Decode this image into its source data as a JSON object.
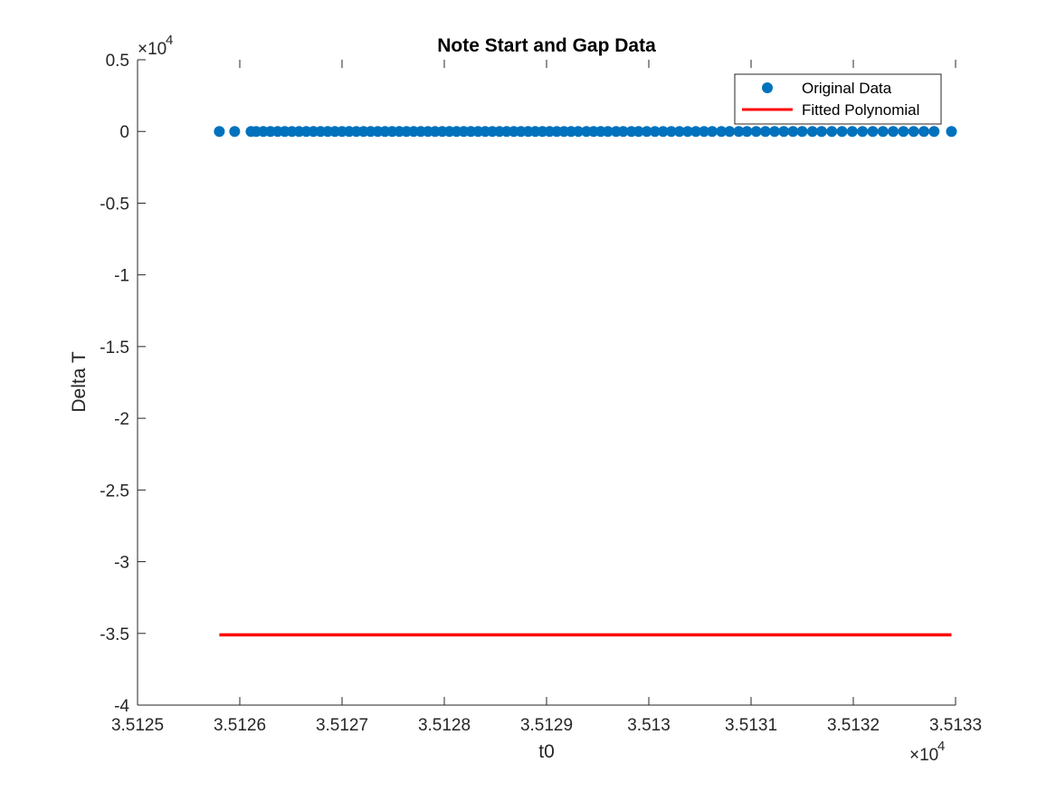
{
  "chart_data": {
    "type": "scatter",
    "title": "Note Start and Gap Data",
    "xlabel": "t0",
    "ylabel": "Delta T",
    "x_exponent_label": "×10",
    "x_exponent_power": "4",
    "y_exponent_label": "×10",
    "y_exponent_power": "4",
    "xlim": [
      3.5125,
      3.5133
    ],
    "ylim": [
      -4,
      0.5
    ],
    "x_ticks": [
      3.5125,
      3.5126,
      3.5127,
      3.5128,
      3.5129,
      3.513,
      3.5131,
      3.5132,
      3.5133
    ],
    "x_tick_labels": [
      "3.5125",
      "3.5126",
      "3.5127",
      "3.5128",
      "3.5129",
      "3.513",
      "3.5131",
      "3.5132",
      "3.5133"
    ],
    "y_ticks": [
      -4,
      -3.5,
      -3,
      -2.5,
      -2,
      -1.5,
      -1,
      -0.5,
      0,
      0.5
    ],
    "y_tick_labels": [
      "-4",
      "-3.5",
      "-3",
      "-2.5",
      "-2",
      "-1.5",
      "-1",
      "-0.5",
      "0",
      "0.5"
    ],
    "grid": false,
    "legend_position": "top-right",
    "series": [
      {
        "name": "Original Data",
        "kind": "markers",
        "color": "#0072BD",
        "y_value": 0,
        "x": [
          3.51258,
          3.512595,
          3.512611,
          3.512616,
          3.512623,
          3.51263,
          3.512637,
          3.512644,
          3.512651,
          3.512658,
          3.512665,
          3.512672,
          3.512679,
          3.512686,
          3.512693,
          3.5127,
          3.512707,
          3.512714,
          3.512721,
          3.512728,
          3.512735,
          3.512742,
          3.512749,
          3.512756,
          3.512763,
          3.51277,
          3.512777,
          3.512784,
          3.512791,
          3.512798,
          3.512805,
          3.512812,
          3.512819,
          3.512826,
          3.512833,
          3.51284,
          3.512847,
          3.512854,
          3.512861,
          3.512868,
          3.512875,
          3.512882,
          3.512889,
          3.512896,
          3.512903,
          3.51291,
          3.512917,
          3.512924,
          3.512931,
          3.512939,
          3.512946,
          3.512953,
          3.51296,
          3.512968,
          3.512975,
          3.512983,
          3.51299,
          3.512998,
          3.513006,
          3.513014,
          3.513022,
          3.51303,
          3.513038,
          3.513046,
          3.513054,
          3.513062,
          3.513071,
          3.513079,
          3.513088,
          3.513096,
          3.513105,
          3.513114,
          3.513123,
          3.513132,
          3.513141,
          3.51315,
          3.51316,
          3.513169,
          3.513179,
          3.513189,
          3.513199,
          3.513209,
          3.513219,
          3.513229,
          3.513239,
          3.513249,
          3.513259,
          3.513269,
          3.513279,
          3.513296
        ]
      },
      {
        "name": "Fitted Polynomial",
        "kind": "line",
        "color": "#FF0000",
        "x": [
          3.51258,
          3.513296
        ],
        "y": [
          -3.51,
          -3.51
        ]
      }
    ]
  }
}
